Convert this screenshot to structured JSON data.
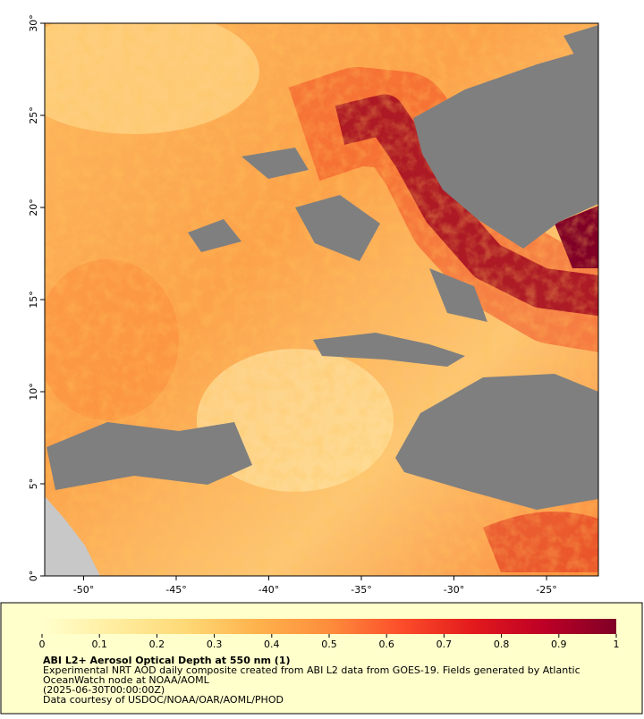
{
  "map": {
    "xlim": [
      -52.1,
      -22.2
    ],
    "ylim": [
      0,
      30
    ],
    "xticks": [
      {
        "value": -50,
        "label": "-50°"
      },
      {
        "value": -45,
        "label": "-45°"
      },
      {
        "value": -40,
        "label": "-40°"
      },
      {
        "value": -35,
        "label": "-35°"
      },
      {
        "value": -30,
        "label": "-30°"
      },
      {
        "value": -25,
        "label": "-25°"
      }
    ],
    "yticks": [
      {
        "value": 0,
        "label": "0°"
      },
      {
        "value": 5,
        "label": "5°"
      },
      {
        "value": 10,
        "label": "10°"
      },
      {
        "value": 15,
        "label": "15°"
      },
      {
        "value": 20,
        "label": "20°"
      },
      {
        "value": 25,
        "label": "25°"
      },
      {
        "value": 30,
        "label": "30°"
      }
    ]
  },
  "colorbar": {
    "range": [
      0,
      1
    ],
    "ticks": [
      0,
      0.1,
      0.2,
      0.3,
      0.4,
      0.5,
      0.6,
      0.7,
      0.8,
      0.9,
      1
    ],
    "colors": [
      "#ffffcc",
      "#ffeda0",
      "#fed976",
      "#feb24c",
      "#fd8d3c",
      "#fc4e2a",
      "#e31a1c",
      "#bd0026",
      "#800026"
    ]
  },
  "caption": {
    "title": "ABI L2+ Aerosol Optical Depth at 550 nm (1)",
    "lines": [
      "Experimental NRT AOD daily composite created from ABI L2 data from GOES-19. Fields generated by Atlantic",
      "OceanWatch node at NOAA/AOML",
      "(2025-06-30T00:00:00Z)",
      "Data courtesy of USDOC/NOAA/OAR/AOML/PHOD"
    ]
  }
}
